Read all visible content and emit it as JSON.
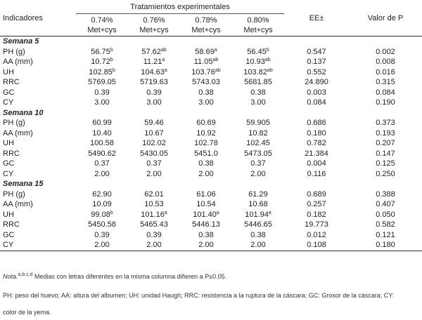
{
  "table": {
    "group_header": "Tratamientos experimentales",
    "col_indicadores": "Indicadores",
    "treatments": [
      {
        "line1": "0.74%",
        "line2": "Met+cys"
      },
      {
        "line1": "0.76%",
        "line2": "Met+cys"
      },
      {
        "line1": "0.78%",
        "line2": "Met+cys"
      },
      {
        "line1": "0.80%",
        "line2": "Met+cys"
      }
    ],
    "col_ee": "EE±",
    "col_p": "Valor de P",
    "sections": [
      {
        "title": "Semana 5",
        "rows": [
          {
            "label": "PH (g)",
            "values": [
              [
                "56.75",
                "b"
              ],
              [
                "57.62",
                "ab"
              ],
              [
                "58.69",
                "a"
              ],
              [
                "56.45",
                "b"
              ]
            ],
            "ee": "0.547",
            "p": "0.002"
          },
          {
            "label": "AA (mm)",
            "values": [
              [
                "10.72",
                "b"
              ],
              [
                "11.21",
                "a"
              ],
              [
                "11.05",
                "ab"
              ],
              [
                "10.93",
                "ab"
              ]
            ],
            "ee": "0.137",
            "p": "0.008"
          },
          {
            "label": "UH",
            "values": [
              [
                "102.85",
                "b"
              ],
              [
                "104.63",
                "a"
              ],
              [
                "103.76",
                "ab"
              ],
              [
                "103.82",
                "ab"
              ]
            ],
            "ee": "0.552",
            "p": "0.016"
          },
          {
            "label": "RRC",
            "values": [
              [
                "5769.05",
                ""
              ],
              [
                "5719.63",
                ""
              ],
              [
                "5743.03",
                ""
              ],
              [
                "5681.85",
                ""
              ]
            ],
            "ee": "24.890",
            "p": "0.315"
          },
          {
            "label": "GC",
            "values": [
              [
                "0.39",
                ""
              ],
              [
                "0.39",
                ""
              ],
              [
                "0.38",
                ""
              ],
              [
                "0.38",
                ""
              ]
            ],
            "ee": "0.003",
            "p": "0.084"
          },
          {
            "label": "CY",
            "values": [
              [
                "3.00",
                ""
              ],
              [
                "3.00",
                ""
              ],
              [
                "3.00",
                ""
              ],
              [
                "3.00",
                ""
              ]
            ],
            "ee": "0.084",
            "p": "0.190"
          }
        ]
      },
      {
        "title": "Semana 10",
        "rows": [
          {
            "label": "PH (g)",
            "values": [
              [
                "60.99",
                ""
              ],
              [
                "59.46",
                ""
              ],
              [
                "60.69",
                ""
              ],
              [
                "59.905",
                ""
              ]
            ],
            "ee": "0.686",
            "p": "0.373"
          },
          {
            "label": "AA (mm)",
            "values": [
              [
                "10.40",
                ""
              ],
              [
                "10.67",
                ""
              ],
              [
                "10.92",
                ""
              ],
              [
                "10.82",
                ""
              ]
            ],
            "ee": "0.180",
            "p": "0.193"
          },
          {
            "label": "UH",
            "values": [
              [
                "100.58",
                ""
              ],
              [
                "102.02",
                ""
              ],
              [
                "102.78",
                ""
              ],
              [
                "102.45",
                ""
              ]
            ],
            "ee": "0.782",
            "p": "0.207"
          },
          {
            "label": "RRC",
            "values": [
              [
                "5490.62",
                ""
              ],
              [
                "5430.05",
                ""
              ],
              [
                "5451.0",
                ""
              ],
              [
                "5473.05",
                ""
              ]
            ],
            "ee": "21.384",
            "p": "0.147"
          },
          {
            "label": "GC",
            "values": [
              [
                "0.37",
                ""
              ],
              [
                "0.37",
                ""
              ],
              [
                "0.38",
                ""
              ],
              [
                "0.37",
                ""
              ]
            ],
            "ee": "0.004",
            "p": "0.125"
          },
          {
            "label": "CY",
            "values": [
              [
                "2.00",
                ""
              ],
              [
                "2.00",
                ""
              ],
              [
                "2.00",
                ""
              ],
              [
                "2.00",
                ""
              ]
            ],
            "ee": "0.116",
            "p": "0.250"
          }
        ]
      },
      {
        "title": "Semana 15",
        "rows": [
          {
            "label": "PH (g)",
            "values": [
              [
                "62.90",
                ""
              ],
              [
                "62.01",
                ""
              ],
              [
                "61.06",
                ""
              ],
              [
                "61.29",
                ""
              ]
            ],
            "ee": "0.689",
            "p": "0.388"
          },
          {
            "label": "AA (mm)",
            "values": [
              [
                "10.09",
                ""
              ],
              [
                "10.53",
                ""
              ],
              [
                "10.54",
                ""
              ],
              [
                "10.68",
                ""
              ]
            ],
            "ee": "0.257",
            "p": "0.407"
          },
          {
            "label": "UH",
            "values": [
              [
                "99.08",
                "b"
              ],
              [
                "101.16",
                "a"
              ],
              [
                "101.40",
                "a"
              ],
              [
                "101.94",
                "a"
              ]
            ],
            "ee": "0.182",
            "p": "0.050"
          },
          {
            "label": "RRC",
            "values": [
              [
                "5450.58",
                ""
              ],
              [
                "5465.43",
                ""
              ],
              [
                "5446.13",
                ""
              ],
              [
                "5446.65",
                ""
              ]
            ],
            "ee": "19.773",
            "p": "0.582"
          },
          {
            "label": "GC",
            "values": [
              [
                "0.39",
                ""
              ],
              [
                "0.39",
                ""
              ],
              [
                "0.38",
                ""
              ],
              [
                "0.38",
                ""
              ]
            ],
            "ee": "0.012",
            "p": "0.121"
          },
          {
            "label": "CY",
            "values": [
              [
                "2.00",
                ""
              ],
              [
                "2.00",
                ""
              ],
              [
                "2.00",
                ""
              ],
              [
                "2.00",
                ""
              ]
            ],
            "ee": "0.108",
            "p": "0.180"
          }
        ]
      }
    ]
  },
  "notes": {
    "nota_label": "Nota.",
    "nota_sup": "a,b,c,d",
    "nota_text": " Medias con letras diferentes en la misma columna difieren a P≤0.05.",
    "abbrev_line1": "PH: peso del huevo; AA: altura del albumen; UH: unidad Haugh; RRC: resistencia a la ruptura de la cáscara; GC: Grosor de la cáscara; CY:",
    "abbrev_line2": "color de la yema."
  }
}
